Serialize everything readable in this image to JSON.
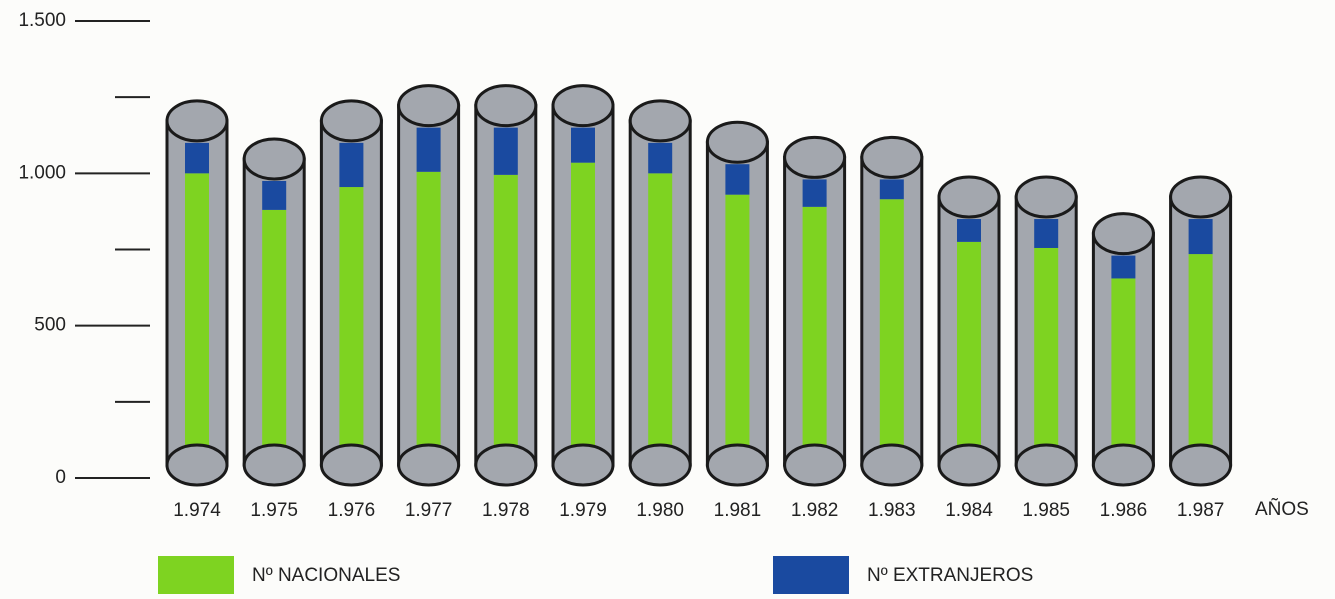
{
  "chart_data": {
    "type": "stacked-bar",
    "categories": [
      "1.974",
      "1.975",
      "1.976",
      "1.977",
      "1.978",
      "1.979",
      "1.980",
      "1.981",
      "1.982",
      "1.983",
      "1.984",
      "1.985",
      "1.986",
      "1.987"
    ],
    "x_label": "AÑOS",
    "series": [
      {
        "name": "Nº NACIONALES",
        "color": "#7ed321",
        "values": [
          1000,
          880,
          955,
          1005,
          995,
          1035,
          1000,
          930,
          890,
          915,
          775,
          755,
          655,
          735
        ]
      },
      {
        "name": "Nº EXTRANJEROS",
        "color": "#1a4aa0",
        "values": [
          100,
          95,
          145,
          145,
          155,
          115,
          100,
          100,
          90,
          65,
          75,
          95,
          75,
          115
        ]
      }
    ],
    "ylim": [
      0,
      1500
    ],
    "yticks": [
      0,
      500,
      {
        "value": 1000,
        "label": "1.000"
      },
      {
        "value": 1500,
        "label": "1.500"
      }
    ],
    "yminorticks": [
      250,
      750,
      1250
    ]
  }
}
